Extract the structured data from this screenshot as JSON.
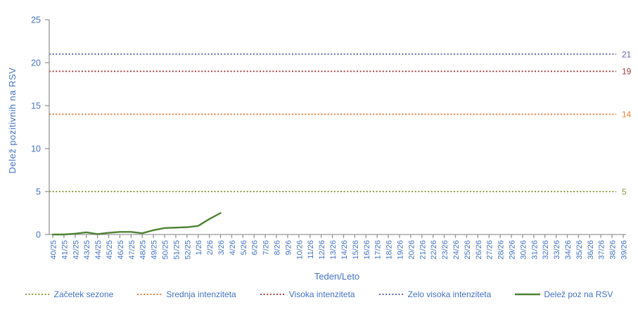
{
  "chart_data": {
    "type": "line",
    "title": "",
    "xlabel": "Teden/Leto",
    "ylabel": "Delež pozitivnih  na  RSV",
    "ylim": [
      0,
      25
    ],
    "y_ticks": [
      0,
      5,
      10,
      15,
      20,
      25
    ],
    "grid": false,
    "legend_position": "bottom",
    "categories": [
      "40/25",
      "41/25",
      "42/25",
      "43/25",
      "44/25",
      "45/25",
      "46/25",
      "47/25",
      "48/25",
      "49/25",
      "50/25",
      "51/25",
      "52/25",
      "1/26",
      "2/26",
      "3/26",
      "4/26",
      "5/26",
      "6/26",
      "7/26",
      "8/26",
      "9/26",
      "10/26",
      "11/26",
      "12/26",
      "13/26",
      "14/26",
      "15/26",
      "16/26",
      "17/26",
      "18/26",
      "19/26",
      "20/26",
      "21/26",
      "22/26",
      "23/26",
      "24/26",
      "25/26",
      "26/26",
      "27/26",
      "28/26",
      "29/26",
      "30/26",
      "31/26",
      "32/26",
      "33/26",
      "34/26",
      "35/26",
      "36/26",
      "37/26",
      "38/26",
      "39/26"
    ],
    "series": [
      {
        "name": "Delež poz na RSV",
        "color": "#4E8234",
        "style": "solid",
        "values": [
          0,
          0,
          0.1,
          0.25,
          0.05,
          0.2,
          0.3,
          0.3,
          0.15,
          0.5,
          0.75,
          0.8,
          0.85,
          1.0,
          1.8,
          2.5
        ]
      }
    ],
    "thresholds": [
      {
        "label": "Začetek sezone",
        "value": 5,
        "value_label": "5",
        "color": "#8E9C44"
      },
      {
        "label": "Srednja intenziteta",
        "value": 14,
        "value_label": "14",
        "color": "#ED7D31"
      },
      {
        "label": "Visoka intenziteta",
        "value": 19,
        "value_label": "19",
        "color": "#A6413E"
      },
      {
        "label": "Zelo visoka intenziteta",
        "value": 21,
        "value_label": "21",
        "color": "#6565A8"
      }
    ]
  },
  "colors": {
    "axis_text": "#4472C4",
    "axis_line": "#969696",
    "background": "#FFFFFF"
  }
}
